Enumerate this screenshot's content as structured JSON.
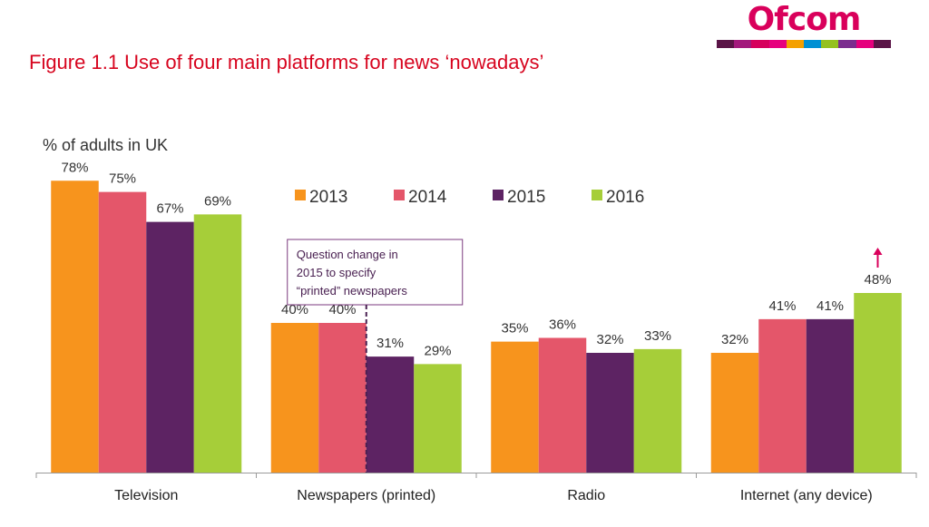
{
  "header": {
    "title": "Figure 1.1 Use of four main platforms for news ‘nowadays’",
    "logo_text": "Ofcom",
    "logo_stripes": [
      "#5a1446",
      "#a3197c",
      "#d6005c",
      "#e6007e",
      "#f4a000",
      "#0090d4",
      "#95c11f",
      "#7b2d8e",
      "#e5007d",
      "#5a1446"
    ]
  },
  "chart_data": {
    "type": "bar",
    "title": "Figure 1.1 Use of four main platforms for news ‘nowadays’",
    "ylabel": "% of adults in UK",
    "xlabel": "",
    "ylim": [
      0,
      100
    ],
    "grid": false,
    "legend_position": "top-center",
    "categories": [
      "Television",
      "Newspapers (printed)",
      "Radio",
      "Internet (any device)"
    ],
    "series": [
      {
        "name": "2013",
        "color": "#f7941d",
        "values": [
          78,
          40,
          35,
          32
        ],
        "labels": [
          "78%",
          "40%",
          "35%",
          "32%"
        ]
      },
      {
        "name": "2014",
        "color": "#e4566a",
        "values": [
          75,
          40,
          36,
          41
        ],
        "labels": [
          "75%",
          "40%",
          "36%",
          "41%"
        ]
      },
      {
        "name": "2015",
        "color": "#5d2363",
        "values": [
          67,
          31,
          32,
          41
        ],
        "labels": [
          "67%",
          "31%",
          "32%",
          "41%"
        ]
      },
      {
        "name": "2016",
        "color": "#a6ce39",
        "values": [
          69,
          29,
          33,
          48
        ],
        "labels": [
          "69%",
          "29%",
          "33%",
          "48%"
        ]
      }
    ],
    "annotation": {
      "lines": [
        "Question change in",
        "2015 to specify",
        "“printed” newspapers"
      ],
      "category_index": 1,
      "border_color": "#7b3a7f"
    },
    "increase_marker": {
      "category_index": 3,
      "series_index": 3,
      "color": "#d9005b",
      "symbol": "↑"
    }
  }
}
